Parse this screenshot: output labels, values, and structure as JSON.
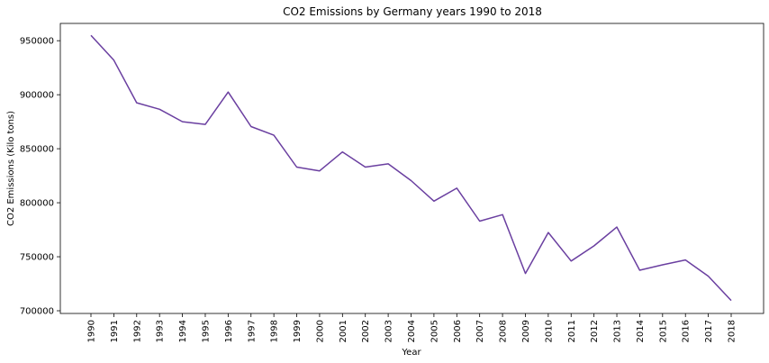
{
  "chart_data": {
    "type": "line",
    "title": "CO2 Emissions by Germany years 1990 to 2018",
    "xlabel": "Year",
    "ylabel": "CO2 Emissions (Kilo tons)",
    "x": [
      "1990",
      "1991",
      "1992",
      "1993",
      "1994",
      "1995",
      "1996",
      "1997",
      "1998",
      "1999",
      "2000",
      "2001",
      "2002",
      "2003",
      "2004",
      "2005",
      "2006",
      "2007",
      "2008",
      "2009",
      "2010",
      "2011",
      "2012",
      "2013",
      "2014",
      "2015",
      "2016",
      "2017",
      "2018"
    ],
    "series": [
      {
        "values": [
          955000,
          932000,
          892500,
          886500,
          875000,
          872500,
          902500,
          870500,
          862500,
          833000,
          829500,
          847000,
          833000,
          836000,
          820500,
          801500,
          813500,
          783000,
          789000,
          734500,
          772500,
          746000,
          760000,
          777500,
          737500,
          742500,
          747000,
          732000,
          709500
        ],
        "color": "#6a3fa0"
      }
    ],
    "yticks": [
      700000,
      750000,
      800000,
      850000,
      900000,
      950000
    ],
    "ylim": [
      697500,
      966000
    ],
    "grid": false,
    "legend": "none"
  }
}
